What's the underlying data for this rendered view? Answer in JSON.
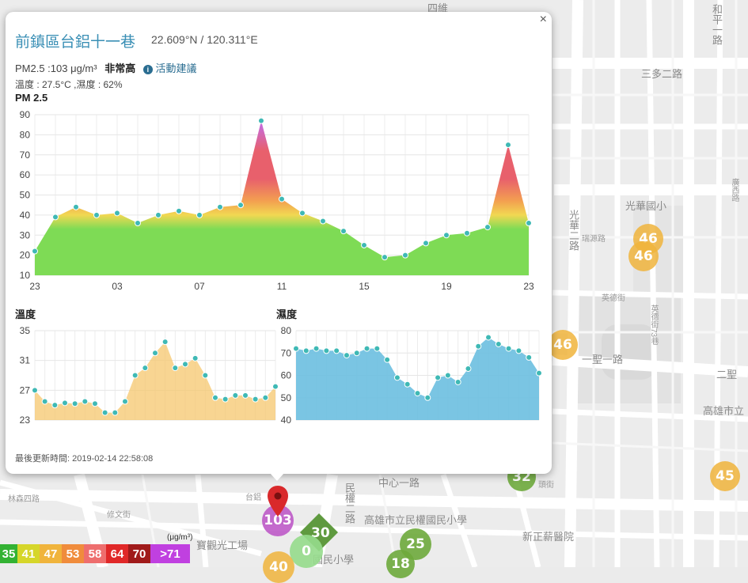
{
  "popup": {
    "title": "前鎮區台鋁十一巷",
    "coords": "22.609°N / 120.311°E",
    "pm_text": "PM2.5 :103 μg/m³",
    "pm_level": "非常高",
    "advice_link": "活動建議",
    "temp_humidity": "溫度 : 27.5°C ,濕度 : 62%",
    "pm_chart_label": "PM 2.5",
    "temp_chart_label": "溫度",
    "humidity_chart_label": "濕度",
    "updated": "最後更新時間: 2019-02-14 22:58:08",
    "close_label": "×"
  },
  "chart_data": [
    {
      "type": "area",
      "title": "PM 2.5",
      "x_ticks": [
        "23",
        "03",
        "07",
        "11",
        "15",
        "19",
        "23"
      ],
      "ylim": [
        10,
        90
      ],
      "y_ticks": [
        10,
        20,
        30,
        40,
        50,
        60,
        70,
        80,
        90
      ],
      "values": [
        22,
        39,
        44,
        40,
        41,
        36,
        40,
        42,
        40,
        44,
        45,
        87,
        48,
        41,
        37,
        32,
        25,
        19,
        20,
        26,
        30,
        31,
        34,
        75,
        36
      ],
      "color_scale": [
        "#7edb55",
        "#f1d852",
        "#f3a050",
        "#e8606c",
        "#c96bd4"
      ]
    },
    {
      "type": "area",
      "title": "溫度",
      "ylim": [
        23,
        35
      ],
      "y_ticks": [
        23,
        27,
        31,
        35
      ],
      "values": [
        27.0,
        25.5,
        25.0,
        25.3,
        25.2,
        25.5,
        25.2,
        24.0,
        24.0,
        25.5,
        29.0,
        30.0,
        32.0,
        33.5,
        30.0,
        30.5,
        31.3,
        29.0,
        26.0,
        25.8,
        26.3,
        26.3,
        25.8,
        26.0,
        27.5
      ],
      "color": "#f5c76e"
    },
    {
      "type": "area",
      "title": "濕度",
      "ylim": [
        40,
        80
      ],
      "y_ticks": [
        40,
        50,
        60,
        70,
        80
      ],
      "values": [
        72,
        71,
        72,
        71,
        71,
        69,
        70,
        72,
        72,
        67,
        59,
        56,
        52,
        50,
        59,
        60,
        57,
        63,
        73,
        77,
        74,
        72,
        71,
        68,
        61
      ],
      "color": "#6bbfe0"
    }
  ],
  "map": {
    "labels": [
      "光華國小",
      "高雄市立民權國民小學",
      "新正薪醫院",
      "寶觀光工場",
      "國民小學",
      "一聖一路",
      "二聖",
      "高雄市立",
      "光華二路",
      "民權二路",
      "三多二路",
      "中心一路",
      "和平一路",
      "四維",
      "英德街",
      "廣西路",
      "英德街73巷",
      "瑞源路",
      "林森四路",
      "台鋁",
      "修文街",
      "頭街"
    ],
    "markers": [
      {
        "value": "46",
        "color": "orange"
      },
      {
        "value": "46",
        "color": "orange"
      },
      {
        "value": "46",
        "color": "orange"
      },
      {
        "value": "45",
        "color": "orange"
      },
      {
        "value": "32",
        "color": "green"
      },
      {
        "value": "25",
        "color": "green"
      },
      {
        "value": "18",
        "color": "green"
      },
      {
        "value": "30",
        "color": "green"
      },
      {
        "value": "0",
        "color": "lightgreen"
      },
      {
        "value": "40",
        "color": "orange"
      },
      {
        "value": "103",
        "color": "purple"
      }
    ]
  },
  "legend": {
    "unit": "(μg/m³)",
    "items": [
      {
        "label": "35",
        "color": "#33b233"
      },
      {
        "label": "41",
        "color": "#d6d62a"
      },
      {
        "label": "47",
        "color": "#f0b43c"
      },
      {
        "label": "53",
        "color": "#f08c3c"
      },
      {
        "label": "58",
        "color": "#ee6e6e"
      },
      {
        "label": "64",
        "color": "#e02828"
      },
      {
        "label": "70",
        "color": "#a01a1a"
      },
      {
        "label": ">71",
        "color": "#c040e0"
      }
    ]
  }
}
